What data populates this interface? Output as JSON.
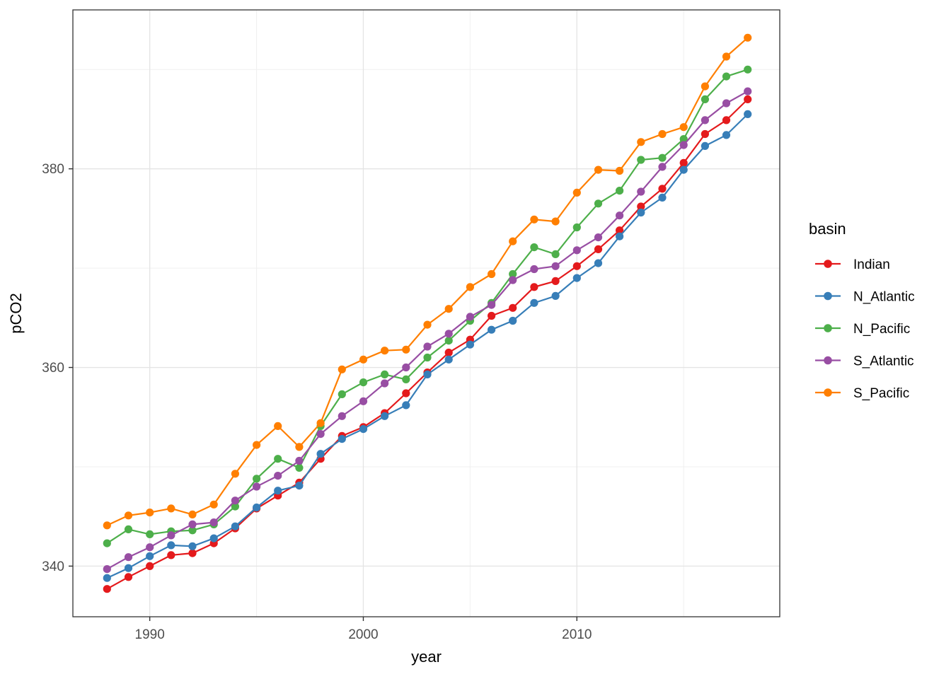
{
  "chart_data": {
    "type": "line",
    "title": "",
    "xlabel": "year",
    "ylabel": "pCO2",
    "grid": true,
    "x_domain": [
      1986.4,
      2019.5
    ],
    "y_domain": [
      334.9,
      396.0
    ],
    "x_ticks": [
      1990,
      2000,
      2010
    ],
    "x_minor_ticks": [
      1995,
      2005,
      2015
    ],
    "y_ticks": [
      340,
      360,
      380
    ],
    "y_minor_ticks": [
      350,
      370,
      390
    ],
    "legend": {
      "title": "basin",
      "position": "right"
    },
    "x": [
      1988,
      1989,
      1990,
      1991,
      1992,
      1993,
      1994,
      1995,
      1996,
      1997,
      1998,
      1999,
      2000,
      2001,
      2002,
      2003,
      2004,
      2005,
      2006,
      2007,
      2008,
      2009,
      2010,
      2011,
      2012,
      2013,
      2014,
      2015,
      2016,
      2017,
      2018
    ],
    "series": [
      {
        "name": "Indian",
        "color": "#e41a1c",
        "values": [
          337.7,
          338.9,
          340.0,
          341.1,
          341.3,
          342.3,
          343.8,
          345.8,
          347.1,
          348.4,
          350.8,
          353.1,
          354.0,
          355.4,
          357.4,
          359.5,
          361.5,
          362.8,
          365.2,
          366.0,
          368.1,
          368.7,
          370.2,
          371.9,
          373.8,
          376.2,
          378.0,
          380.6,
          383.5,
          384.9,
          387.0
        ]
      },
      {
        "name": "N_Atlantic",
        "color": "#377eb8",
        "values": [
          338.8,
          339.8,
          341.0,
          342.1,
          342.0,
          342.8,
          344.0,
          345.9,
          347.6,
          348.1,
          351.3,
          352.8,
          353.8,
          355.1,
          356.2,
          359.3,
          360.8,
          362.3,
          363.8,
          364.7,
          366.5,
          367.2,
          369.0,
          370.5,
          373.2,
          375.6,
          377.1,
          379.9,
          382.3,
          383.4,
          385.5
        ]
      },
      {
        "name": "N_Pacific",
        "color": "#4daf4a",
        "values": [
          342.3,
          343.7,
          343.2,
          343.5,
          343.6,
          344.2,
          346.0,
          348.8,
          350.8,
          349.9,
          354.1,
          357.3,
          358.5,
          359.3,
          358.8,
          361.0,
          362.7,
          364.7,
          366.5,
          369.4,
          372.1,
          371.4,
          374.1,
          376.5,
          377.8,
          380.9,
          381.1,
          383.0,
          387.0,
          389.3,
          390.0
        ]
      },
      {
        "name": "S_Atlantic",
        "color": "#984ea3",
        "values": [
          339.7,
          340.9,
          341.9,
          343.1,
          344.2,
          344.4,
          346.6,
          348.0,
          349.1,
          350.6,
          353.3,
          355.1,
          356.6,
          358.4,
          360.0,
          362.1,
          363.4,
          365.1,
          366.3,
          368.8,
          369.9,
          370.2,
          371.8,
          373.1,
          375.3,
          377.7,
          380.2,
          382.4,
          384.9,
          386.6,
          387.8
        ]
      },
      {
        "name": "S_Pacific",
        "color": "#ff7f00",
        "values": [
          344.1,
          345.1,
          345.4,
          345.8,
          345.2,
          346.2,
          349.3,
          352.2,
          354.1,
          352.0,
          354.4,
          359.8,
          360.8,
          361.7,
          361.8,
          364.3,
          365.9,
          368.1,
          369.4,
          372.7,
          374.9,
          374.7,
          377.6,
          379.9,
          379.8,
          382.7,
          383.5,
          384.2,
          388.3,
          391.3,
          393.2
        ]
      }
    ],
    "style": {
      "grid_major_color": "#e4e4e4",
      "grid_minor_color": "#f0f0f0",
      "panel_border_color": "#333333",
      "tick_label_color": "#4d4d4d"
    }
  }
}
